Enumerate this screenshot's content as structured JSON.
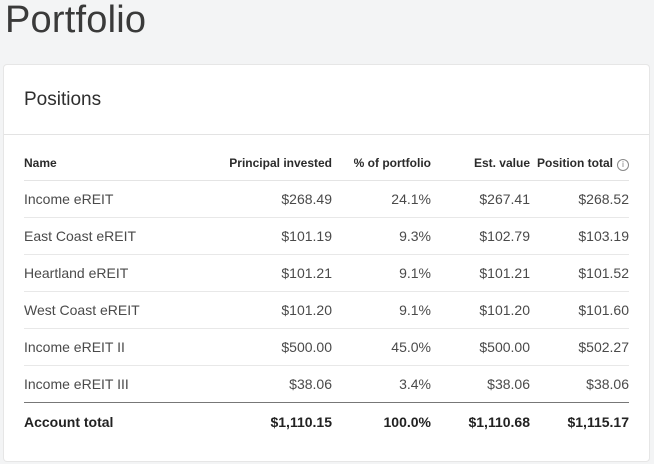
{
  "page": {
    "title": "Portfolio"
  },
  "positions": {
    "title": "Positions",
    "columns": {
      "name": "Name",
      "principal": "Principal invested",
      "percent": "% of portfolio",
      "est_value": "Est. value",
      "position_total": "Position total"
    },
    "rows": [
      {
        "name": "Income eREIT",
        "principal": "$268.49",
        "percent": "24.1%",
        "est_value": "$267.41",
        "position_total": "$268.52"
      },
      {
        "name": "East Coast eREIT",
        "principal": "$101.19",
        "percent": "9.3%",
        "est_value": "$102.79",
        "position_total": "$103.19"
      },
      {
        "name": "Heartland eREIT",
        "principal": "$101.21",
        "percent": "9.1%",
        "est_value": "$101.21",
        "position_total": "$101.52"
      },
      {
        "name": "West Coast eREIT",
        "principal": "$101.20",
        "percent": "9.1%",
        "est_value": "$101.20",
        "position_total": "$101.60"
      },
      {
        "name": "Income eREIT II",
        "principal": "$500.00",
        "percent": "45.0%",
        "est_value": "$500.00",
        "position_total": "$502.27"
      },
      {
        "name": "Income eREIT III",
        "principal": "$38.06",
        "percent": "3.4%",
        "est_value": "$38.06",
        "position_total": "$38.06"
      }
    ],
    "total": {
      "name": "Account total",
      "principal": "$1,110.15",
      "percent": "100.0%",
      "est_value": "$1,110.68",
      "position_total": "$1,115.17"
    },
    "info_icon_glyph": "i"
  }
}
